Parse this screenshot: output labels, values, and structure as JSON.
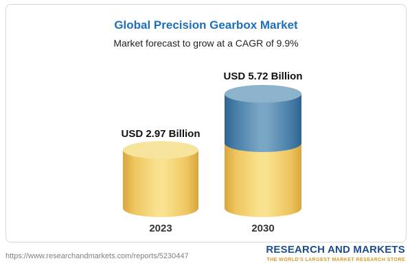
{
  "card": {
    "title": "Global Precision Gearbox Market",
    "subtitle": "Market forecast to grow at a CAGR of 9.9%"
  },
  "chart_data": {
    "type": "bar",
    "title": "Global Precision Gearbox Market",
    "subtitle": "Market forecast to grow at a CAGR of 9.9%",
    "cagr": "9.9%",
    "unit": "USD Billion",
    "categories": [
      "2023",
      "2030"
    ],
    "values": [
      2.97,
      5.72
    ],
    "value_labels": [
      "USD 2.97 Billion",
      "USD 5.72 Billion"
    ],
    "ylim": [
      0,
      6
    ],
    "grid": false,
    "legend": false,
    "colors": {
      "base_segment": "#f0cd68",
      "growth_segment": "#4a7fa7"
    }
  },
  "footer": {
    "url": "https://www.researchandmarkets.com/reports/5230447",
    "logo_name": "RESEARCH AND MARKETS",
    "logo_tagline": "THE WORLD'S LARGEST MARKET RESEARCH STORE"
  }
}
